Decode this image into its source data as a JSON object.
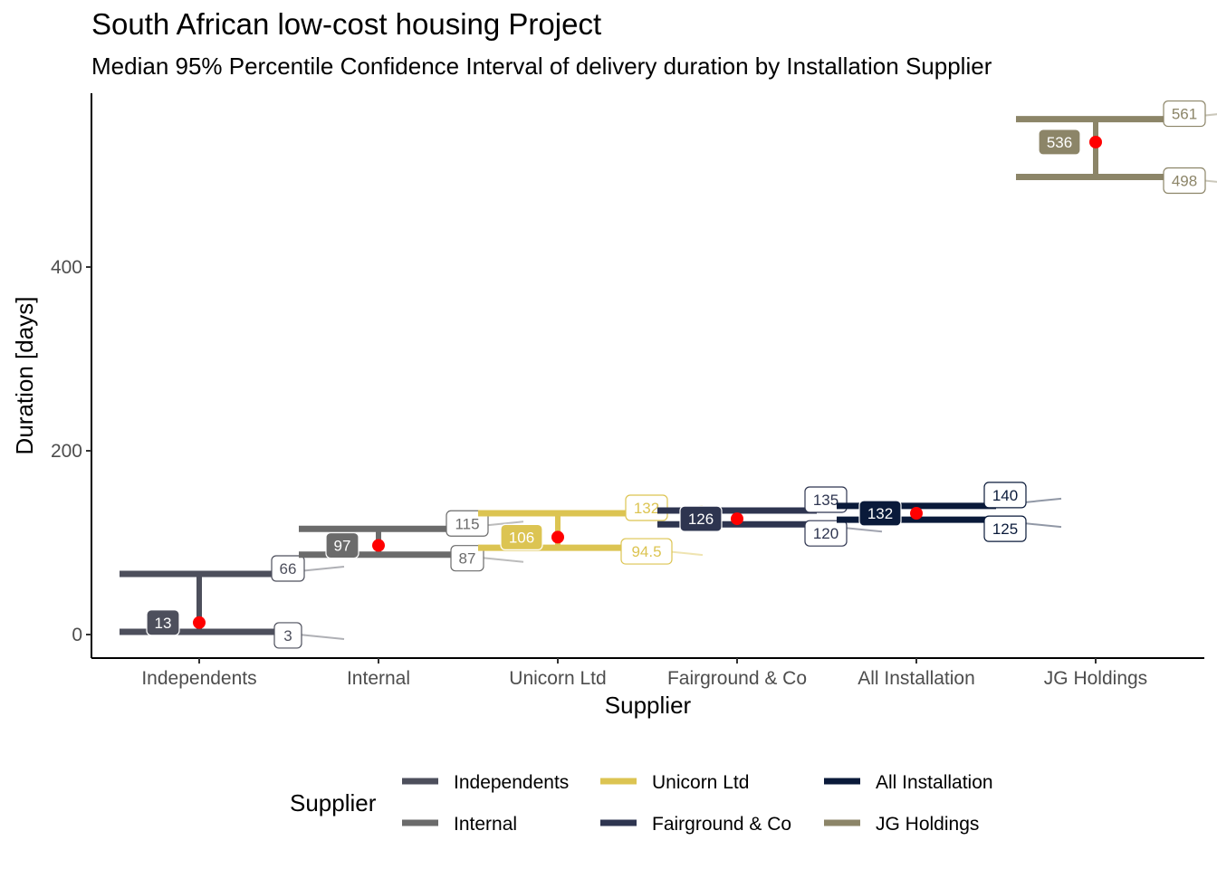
{
  "chart_data": {
    "type": "confidence-interval",
    "title": "South African low-cost housing Project",
    "subtitle": "Median 95% Percentile Confidence Interval of delivery duration by Installation Supplier",
    "xlabel": "Supplier",
    "ylabel": "Duration [days]",
    "ylim": [
      -25,
      590
    ],
    "yticks": [
      0,
      200,
      400
    ],
    "grid": false,
    "legend": {
      "title": "Supplier",
      "position": "bottom"
    },
    "categories": [
      "Independents",
      "Internal",
      "Unicorn Ltd",
      "Fairground & Co",
      "All Installation",
      "JG Holdings"
    ],
    "series": [
      {
        "name": "Independents",
        "color": "#4d4f5c",
        "median": 13,
        "upper": 66,
        "lower": 3,
        "median_label": "13",
        "upper_label": "66",
        "lower_label": "3"
      },
      {
        "name": "Internal",
        "color": "#6b6b6b",
        "median": 97,
        "upper": 115,
        "lower": 87,
        "median_label": "97",
        "upper_label": "115",
        "lower_label": "87"
      },
      {
        "name": "Unicorn Ltd",
        "color": "#dcc452",
        "median": 106,
        "upper": 132,
        "lower": 94.5,
        "median_label": "106",
        "upper_label": "132",
        "lower_label": "94.5"
      },
      {
        "name": "Fairground & Co",
        "color": "#2e3550",
        "median": 126,
        "upper": 135,
        "lower": 120,
        "median_label": "126",
        "upper_label": "135",
        "lower_label": "120"
      },
      {
        "name": "All Installation",
        "color": "#0a1a3a",
        "median": 132,
        "upper": 140,
        "lower": 125,
        "median_label": "132",
        "upper_label": "140",
        "lower_label": "125"
      },
      {
        "name": "JG Holdings",
        "color": "#8c8568",
        "median": 536,
        "upper": 561,
        "lower": 498,
        "median_label": "536",
        "upper_label": "561",
        "lower_label": "498"
      }
    ],
    "median_point_color": "#ff0000"
  }
}
